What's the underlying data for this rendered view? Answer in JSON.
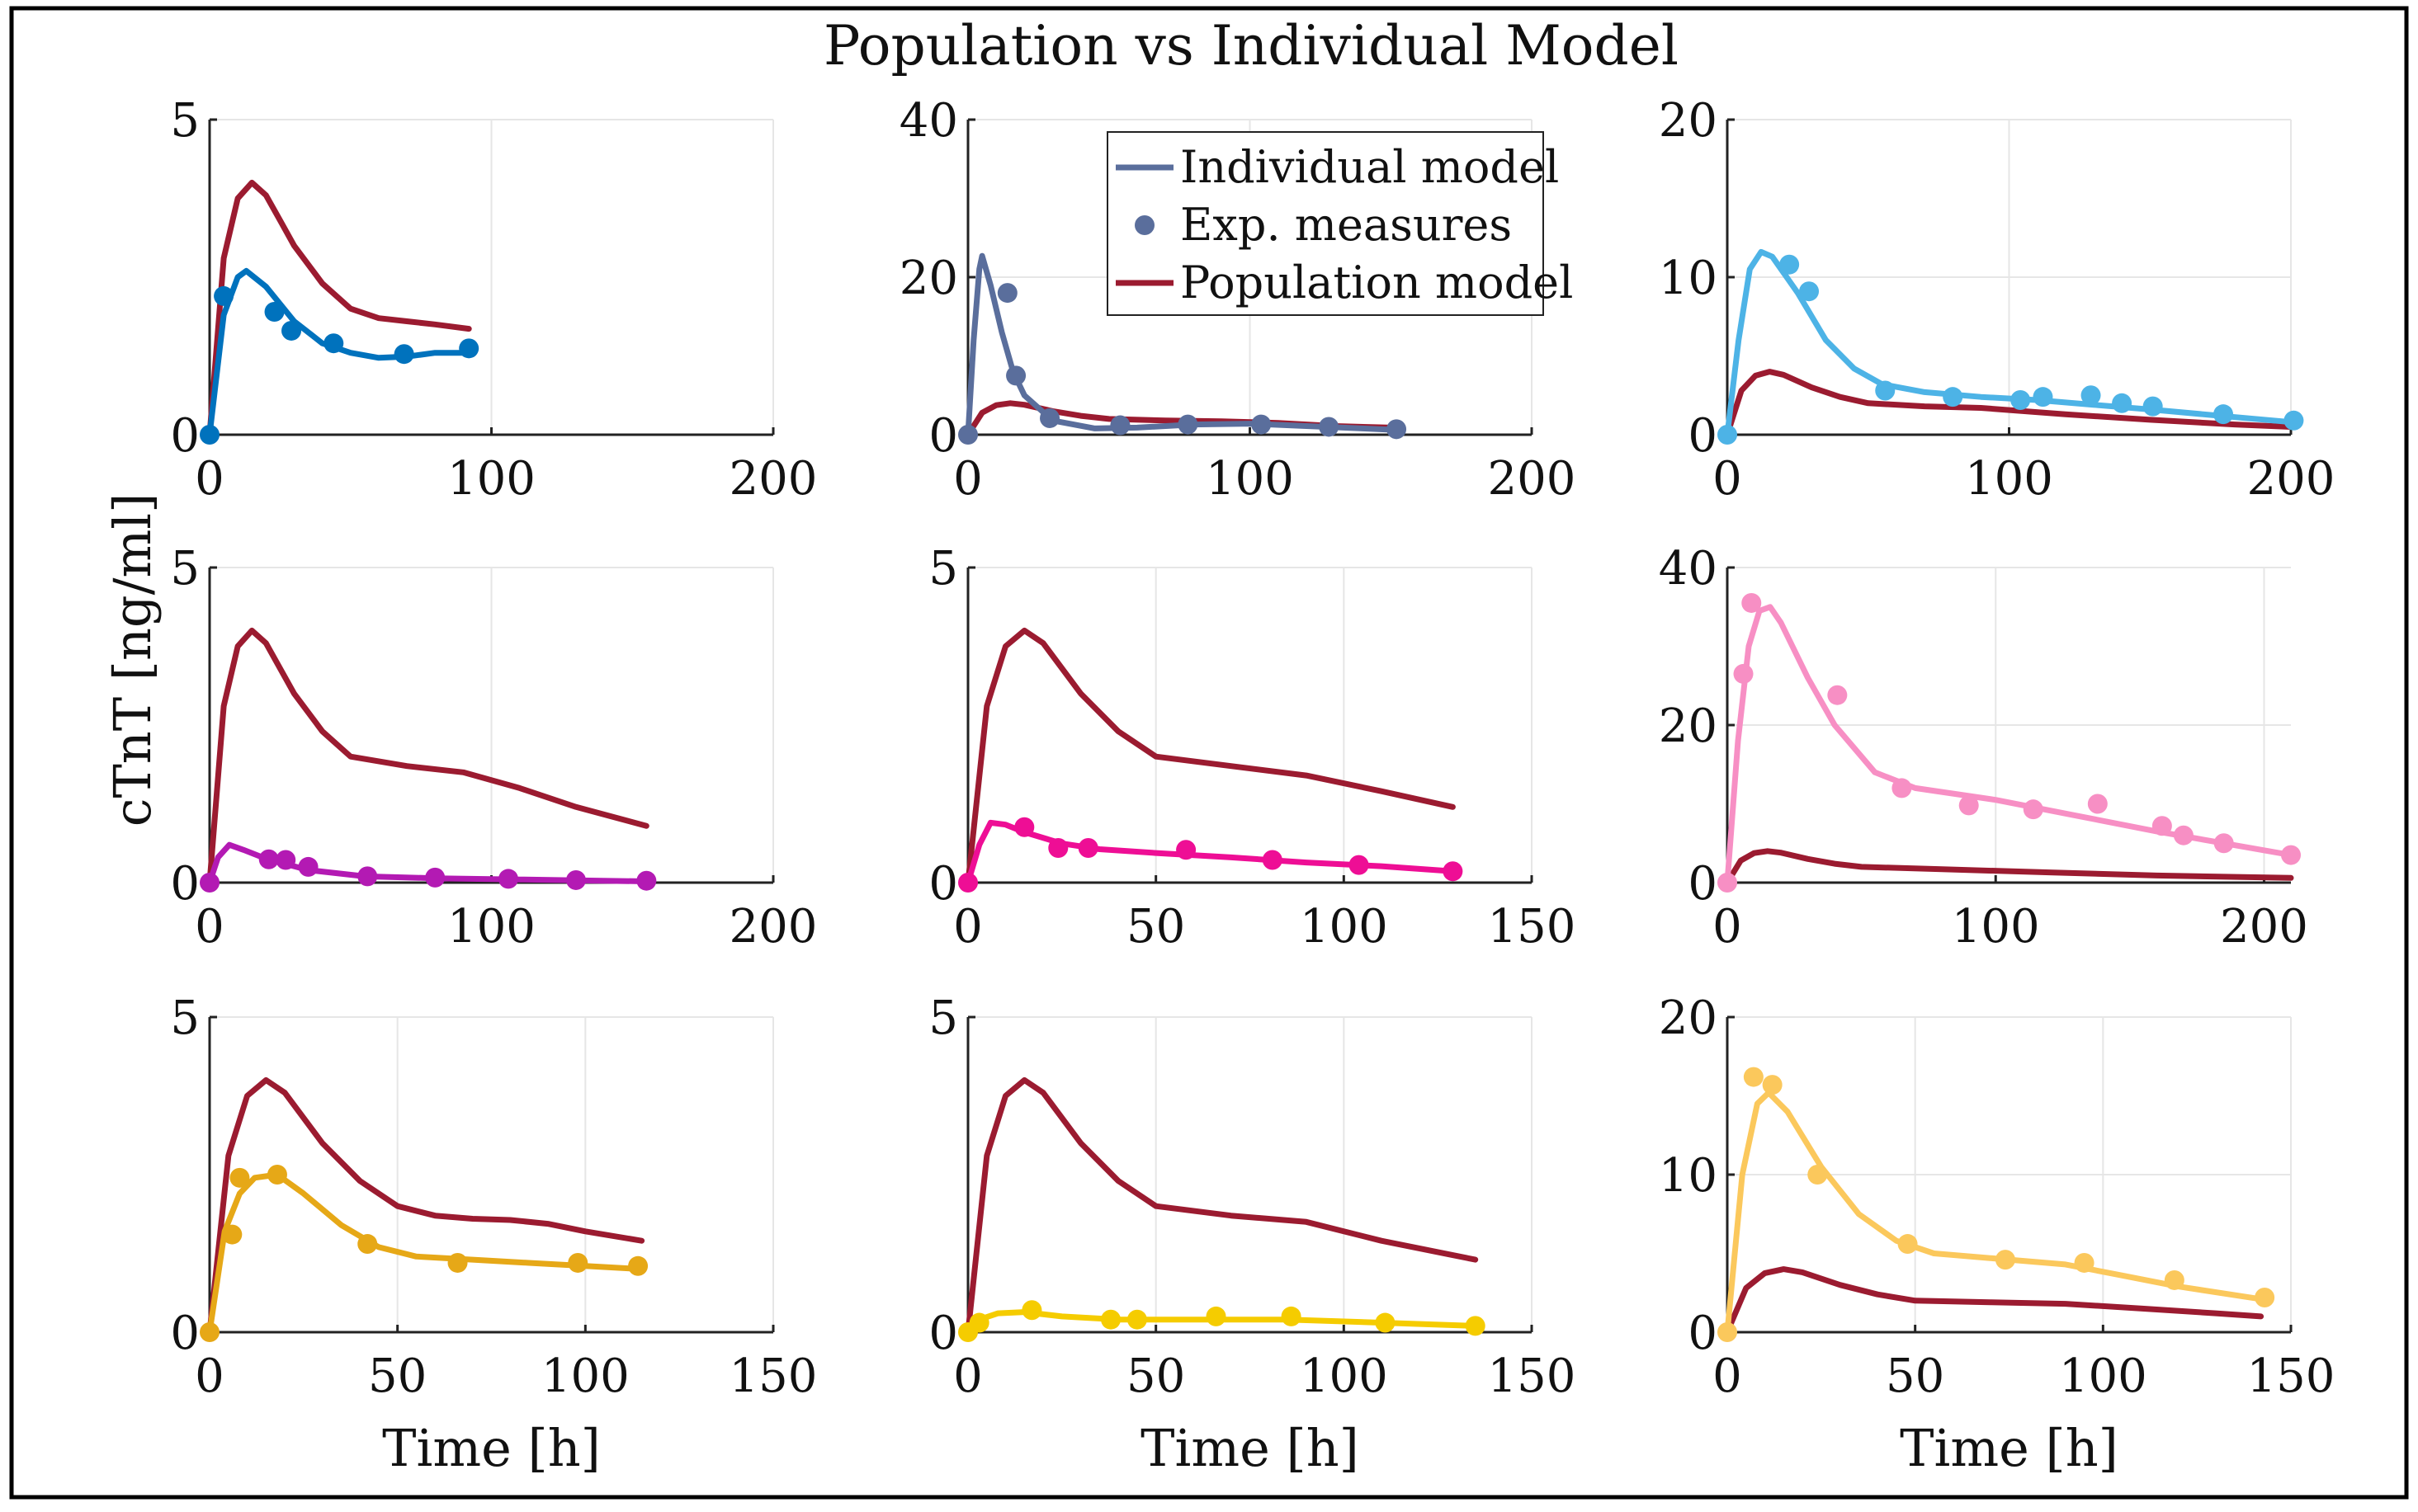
{
  "figure_title": "Population vs Individual Model",
  "shared_ylabel": "cTnT [ng/ml]",
  "legend": {
    "individual": "Individual model",
    "measures": "Exp. measures",
    "population": "Population model"
  },
  "colors": {
    "population": "#9b1b30",
    "grid": "#e6e6e6",
    "frame": "#000000"
  },
  "chart_data": [
    {
      "type": "line",
      "color": "#0072bd",
      "xlim": [
        0,
        200
      ],
      "ylim": [
        0,
        5
      ],
      "xticks": [
        0,
        100,
        200
      ],
      "yticks": [
        0,
        5
      ],
      "xlabel": "",
      "ylabel": "",
      "population": [
        [
          0,
          0
        ],
        [
          5,
          2.8
        ],
        [
          10,
          3.75
        ],
        [
          15,
          4.0
        ],
        [
          20,
          3.8
        ],
        [
          25,
          3.4
        ],
        [
          30,
          3.0
        ],
        [
          40,
          2.4
        ],
        [
          50,
          2.0
        ],
        [
          60,
          1.85
        ],
        [
          70,
          1.8
        ],
        [
          80,
          1.75
        ],
        [
          92,
          1.68
        ]
      ],
      "individual": [
        [
          0,
          0
        ],
        [
          5,
          1.9
        ],
        [
          10,
          2.5
        ],
        [
          13,
          2.6
        ],
        [
          20,
          2.35
        ],
        [
          30,
          1.8
        ],
        [
          40,
          1.45
        ],
        [
          50,
          1.3
        ],
        [
          60,
          1.22
        ],
        [
          70,
          1.24
        ],
        [
          80,
          1.3
        ],
        [
          92,
          1.3
        ]
      ],
      "measures": [
        [
          0,
          0
        ],
        [
          5,
          2.2
        ],
        [
          23,
          1.95
        ],
        [
          29,
          1.65
        ],
        [
          44,
          1.45
        ],
        [
          69,
          1.28
        ],
        [
          92,
          1.37
        ]
      ]
    },
    {
      "type": "line",
      "color": "#5a6e9c",
      "xlim": [
        0,
        200
      ],
      "ylim": [
        0,
        40
      ],
      "xticks": [
        0,
        100,
        200
      ],
      "yticks": [
        0,
        20,
        40
      ],
      "xlabel": "",
      "ylabel": "",
      "legend_position": "top-right",
      "population": [
        [
          0,
          0
        ],
        [
          5,
          2.8
        ],
        [
          10,
          3.75
        ],
        [
          15,
          4.0
        ],
        [
          20,
          3.8
        ],
        [
          30,
          3.0
        ],
        [
          40,
          2.4
        ],
        [
          50,
          2.0
        ],
        [
          70,
          1.8
        ],
        [
          90,
          1.7
        ],
        [
          110,
          1.5
        ],
        [
          130,
          1.1
        ],
        [
          150,
          0.9
        ]
      ],
      "individual": [
        [
          0,
          0
        ],
        [
          2,
          12
        ],
        [
          4,
          21
        ],
        [
          5,
          22.7
        ],
        [
          8,
          19
        ],
        [
          12,
          13
        ],
        [
          16,
          8
        ],
        [
          20,
          5
        ],
        [
          30,
          1.8
        ],
        [
          45,
          0.8
        ],
        [
          60,
          0.9
        ],
        [
          80,
          1.3
        ],
        [
          100,
          1.4
        ],
        [
          120,
          1.1
        ],
        [
          140,
          0.8
        ],
        [
          152,
          0.6
        ]
      ],
      "measures": [
        [
          0,
          0
        ],
        [
          14,
          18
        ],
        [
          17,
          7.5
        ],
        [
          29,
          2.1
        ],
        [
          54,
          1.2
        ],
        [
          78,
          1.3
        ],
        [
          104,
          1.3
        ],
        [
          128,
          1.0
        ],
        [
          152,
          0.7
        ]
      ]
    },
    {
      "type": "line",
      "color": "#4db3e6",
      "xlim": [
        0,
        200
      ],
      "ylim": [
        0,
        20
      ],
      "xticks": [
        0,
        100,
        200
      ],
      "yticks": [
        0,
        10,
        20
      ],
      "xlabel": "",
      "ylabel": "",
      "population": [
        [
          0,
          0
        ],
        [
          5,
          2.8
        ],
        [
          10,
          3.75
        ],
        [
          15,
          4.0
        ],
        [
          20,
          3.8
        ],
        [
          30,
          3.0
        ],
        [
          40,
          2.4
        ],
        [
          50,
          2.0
        ],
        [
          70,
          1.8
        ],
        [
          90,
          1.7
        ],
        [
          120,
          1.3
        ],
        [
          150,
          0.95
        ],
        [
          180,
          0.65
        ],
        [
          200,
          0.5
        ]
      ],
      "individual": [
        [
          0,
          0
        ],
        [
          4,
          6
        ],
        [
          8,
          10.5
        ],
        [
          12,
          11.6
        ],
        [
          16,
          11.3
        ],
        [
          25,
          9
        ],
        [
          35,
          6
        ],
        [
          45,
          4.2
        ],
        [
          55,
          3.2
        ],
        [
          70,
          2.7
        ],
        [
          90,
          2.4
        ],
        [
          110,
          2.2
        ],
        [
          130,
          1.9
        ],
        [
          150,
          1.6
        ],
        [
          175,
          1.2
        ],
        [
          200,
          0.8
        ]
      ],
      "measures": [
        [
          0,
          0
        ],
        [
          22,
          10.8
        ],
        [
          29,
          9.1
        ],
        [
          56,
          2.8
        ],
        [
          80,
          2.4
        ],
        [
          104,
          2.2
        ],
        [
          112,
          2.4
        ],
        [
          129,
          2.5
        ],
        [
          140,
          2.0
        ],
        [
          151,
          1.8
        ],
        [
          176,
          1.3
        ],
        [
          201,
          0.9
        ]
      ]
    },
    {
      "type": "line",
      "color": "#b31ab3",
      "xlim": [
        0,
        200
      ],
      "ylim": [
        0,
        5
      ],
      "xticks": [
        0,
        100,
        200
      ],
      "yticks": [
        0,
        5
      ],
      "xlabel": "",
      "ylabel": "",
      "population": [
        [
          0,
          0
        ],
        [
          5,
          2.8
        ],
        [
          10,
          3.75
        ],
        [
          15,
          4.0
        ],
        [
          20,
          3.8
        ],
        [
          30,
          3.0
        ],
        [
          40,
          2.4
        ],
        [
          50,
          2.0
        ],
        [
          70,
          1.85
        ],
        [
          90,
          1.75
        ],
        [
          110,
          1.5
        ],
        [
          130,
          1.2
        ],
        [
          155,
          0.9
        ]
      ],
      "individual": [
        [
          0,
          0
        ],
        [
          3,
          0.4
        ],
        [
          7,
          0.6
        ],
        [
          12,
          0.52
        ],
        [
          20,
          0.38
        ],
        [
          35,
          0.2
        ],
        [
          55,
          0.1
        ],
        [
          80,
          0.07
        ],
        [
          110,
          0.05
        ],
        [
          155,
          0.02
        ]
      ],
      "measures": [
        [
          0,
          0
        ],
        [
          21,
          0.37
        ],
        [
          27,
          0.36
        ],
        [
          35,
          0.25
        ],
        [
          56,
          0.1
        ],
        [
          80,
          0.08
        ],
        [
          106,
          0.06
        ],
        [
          130,
          0.04
        ],
        [
          155,
          0.03
        ]
      ]
    },
    {
      "type": "line",
      "color": "#ee0e95",
      "xlim": [
        0,
        150
      ],
      "ylim": [
        0,
        5
      ],
      "xticks": [
        0,
        50,
        100,
        150
      ],
      "yticks": [
        0,
        5
      ],
      "xlabel": "",
      "ylabel": "",
      "population": [
        [
          0,
          0
        ],
        [
          5,
          2.8
        ],
        [
          10,
          3.75
        ],
        [
          15,
          4.0
        ],
        [
          20,
          3.8
        ],
        [
          30,
          3.0
        ],
        [
          40,
          2.4
        ],
        [
          50,
          2.0
        ],
        [
          70,
          1.85
        ],
        [
          90,
          1.7
        ],
        [
          110,
          1.45
        ],
        [
          129,
          1.2
        ]
      ],
      "individual": [
        [
          0,
          0
        ],
        [
          3,
          0.6
        ],
        [
          6,
          0.95
        ],
        [
          10,
          0.92
        ],
        [
          15,
          0.8
        ],
        [
          25,
          0.62
        ],
        [
          35,
          0.53
        ],
        [
          50,
          0.47
        ],
        [
          70,
          0.4
        ],
        [
          90,
          0.32
        ],
        [
          110,
          0.26
        ],
        [
          129,
          0.18
        ]
      ],
      "measures": [
        [
          0,
          0
        ],
        [
          15,
          0.88
        ],
        [
          24,
          0.55
        ],
        [
          32,
          0.55
        ],
        [
          58,
          0.52
        ],
        [
          81,
          0.36
        ],
        [
          104,
          0.28
        ],
        [
          129,
          0.18
        ]
      ]
    },
    {
      "type": "line",
      "color": "#f78fc4",
      "xlim": [
        0,
        210
      ],
      "ylim": [
        0,
        40
      ],
      "xticks": [
        0,
        100,
        200
      ],
      "yticks": [
        0,
        20,
        40
      ],
      "xlabel": "",
      "ylabel": "",
      "population": [
        [
          0,
          0
        ],
        [
          5,
          2.8
        ],
        [
          10,
          3.75
        ],
        [
          15,
          4.0
        ],
        [
          20,
          3.8
        ],
        [
          30,
          3.0
        ],
        [
          40,
          2.4
        ],
        [
          50,
          2.0
        ],
        [
          80,
          1.7
        ],
        [
          120,
          1.3
        ],
        [
          160,
          0.9
        ],
        [
          210,
          0.6
        ]
      ],
      "individual": [
        [
          0,
          0
        ],
        [
          4,
          18
        ],
        [
          8,
          30
        ],
        [
          12,
          34.5
        ],
        [
          16,
          35
        ],
        [
          20,
          33
        ],
        [
          30,
          26
        ],
        [
          40,
          20
        ],
        [
          55,
          14
        ],
        [
          70,
          12
        ],
        [
          100,
          10.5
        ],
        [
          130,
          8.5
        ],
        [
          160,
          6.5
        ],
        [
          185,
          5
        ],
        [
          210,
          3.5
        ]
      ],
      "measures": [
        [
          0,
          0
        ],
        [
          6,
          26.5
        ],
        [
          9,
          35.5
        ],
        [
          41,
          23.8
        ],
        [
          65,
          12
        ],
        [
          90,
          9.8
        ],
        [
          114,
          9.3
        ],
        [
          138,
          10
        ],
        [
          162,
          7.2
        ],
        [
          170,
          6
        ],
        [
          185,
          5
        ],
        [
          210,
          3.5
        ]
      ]
    },
    {
      "type": "line",
      "color": "#e6a817",
      "xlim": [
        0,
        150
      ],
      "ylim": [
        0,
        5
      ],
      "xticks": [
        0,
        50,
        100,
        150
      ],
      "yticks": [
        0,
        5
      ],
      "xlabel": "Time [h]",
      "ylabel": "",
      "population": [
        [
          0,
          0
        ],
        [
          5,
          2.8
        ],
        [
          10,
          3.75
        ],
        [
          15,
          4.0
        ],
        [
          20,
          3.8
        ],
        [
          30,
          3.0
        ],
        [
          40,
          2.4
        ],
        [
          50,
          2.0
        ],
        [
          60,
          1.85
        ],
        [
          70,
          1.8
        ],
        [
          80,
          1.78
        ],
        [
          90,
          1.72
        ],
        [
          100,
          1.6
        ],
        [
          115,
          1.45
        ]
      ],
      "individual": [
        [
          0,
          0
        ],
        [
          4,
          1.6
        ],
        [
          8,
          2.2
        ],
        [
          12,
          2.45
        ],
        [
          18,
          2.5
        ],
        [
          25,
          2.2
        ],
        [
          35,
          1.7
        ],
        [
          45,
          1.35
        ],
        [
          55,
          1.2
        ],
        [
          70,
          1.15
        ],
        [
          85,
          1.1
        ],
        [
          100,
          1.05
        ],
        [
          115,
          1.0
        ]
      ],
      "measures": [
        [
          0,
          0
        ],
        [
          6,
          1.55
        ],
        [
          8,
          2.45
        ],
        [
          18,
          2.5
        ],
        [
          42,
          1.4
        ],
        [
          66,
          1.1
        ],
        [
          98,
          1.1
        ],
        [
          114,
          1.05
        ]
      ]
    },
    {
      "type": "line",
      "color": "#f5cc00",
      "xlim": [
        0,
        150
      ],
      "ylim": [
        0,
        5
      ],
      "xticks": [
        0,
        50,
        100,
        150
      ],
      "yticks": [
        0,
        5
      ],
      "xlabel": "Time [h]",
      "ylabel": "",
      "population": [
        [
          0,
          0
        ],
        [
          5,
          2.8
        ],
        [
          10,
          3.75
        ],
        [
          15,
          4.0
        ],
        [
          20,
          3.8
        ],
        [
          30,
          3.0
        ],
        [
          40,
          2.4
        ],
        [
          50,
          2.0
        ],
        [
          70,
          1.85
        ],
        [
          90,
          1.75
        ],
        [
          110,
          1.45
        ],
        [
          135,
          1.15
        ]
      ],
      "individual": [
        [
          0,
          0
        ],
        [
          3,
          0.2
        ],
        [
          8,
          0.3
        ],
        [
          15,
          0.32
        ],
        [
          25,
          0.25
        ],
        [
          40,
          0.2
        ],
        [
          60,
          0.2
        ],
        [
          85,
          0.2
        ],
        [
          110,
          0.15
        ],
        [
          135,
          0.1
        ]
      ],
      "measures": [
        [
          0,
          0
        ],
        [
          3,
          0.15
        ],
        [
          17,
          0.35
        ],
        [
          38,
          0.2
        ],
        [
          45,
          0.2
        ],
        [
          66,
          0.25
        ],
        [
          86,
          0.25
        ],
        [
          111,
          0.15
        ],
        [
          135,
          0.1
        ]
      ]
    },
    {
      "type": "line",
      "color": "#fbc85c",
      "xlim": [
        0,
        150
      ],
      "ylim": [
        0,
        20
      ],
      "xticks": [
        0,
        50,
        100,
        150
      ],
      "yticks": [
        0,
        10,
        20
      ],
      "xlabel": "Time [h]",
      "ylabel": "",
      "population": [
        [
          0,
          0
        ],
        [
          5,
          2.8
        ],
        [
          10,
          3.75
        ],
        [
          15,
          4.0
        ],
        [
          20,
          3.8
        ],
        [
          30,
          3.0
        ],
        [
          40,
          2.4
        ],
        [
          50,
          2.0
        ],
        [
          70,
          1.9
        ],
        [
          90,
          1.8
        ],
        [
          110,
          1.5
        ],
        [
          130,
          1.2
        ],
        [
          142,
          1.0
        ]
      ],
      "individual": [
        [
          0,
          0
        ],
        [
          4,
          10
        ],
        [
          8,
          14.5
        ],
        [
          11,
          15.2
        ],
        [
          16,
          14
        ],
        [
          25,
          10.5
        ],
        [
          35,
          7.5
        ],
        [
          45,
          5.8
        ],
        [
          55,
          5
        ],
        [
          70,
          4.7
        ],
        [
          90,
          4.3
        ],
        [
          105,
          3.6
        ],
        [
          120,
          2.9
        ],
        [
          142,
          2.1
        ]
      ],
      "measures": [
        [
          0,
          0
        ],
        [
          7,
          16.2
        ],
        [
          12,
          15.7
        ],
        [
          24,
          10
        ],
        [
          48,
          5.6
        ],
        [
          74,
          4.6
        ],
        [
          95,
          4.4
        ],
        [
          119,
          3.3
        ],
        [
          143,
          2.2
        ]
      ]
    }
  ]
}
